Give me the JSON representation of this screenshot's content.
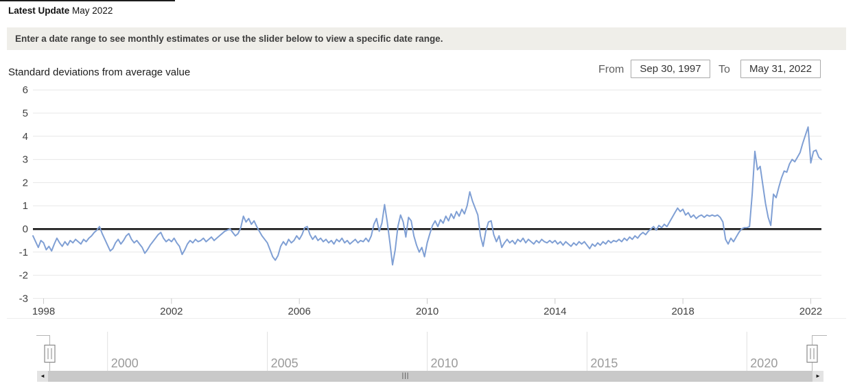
{
  "header": {
    "latest_update_label": "Latest Update",
    "latest_update_value": "May 2022"
  },
  "banner": {
    "text": "Enter a date range to see monthly estimates or use the slider below to view a specific date range."
  },
  "controls": {
    "from_label": "From",
    "from_value": "Sep 30, 1997",
    "to_label": "To",
    "to_value": "May 31, 2022"
  },
  "chart_data": {
    "type": "line",
    "title": "Standard deviations from average value",
    "x_start": "1997-09",
    "x_end": "2022-05",
    "frequency": "monthly",
    "x_tick_labels": [
      "1998",
      "2002",
      "2006",
      "2010",
      "2014",
      "2018",
      "2022"
    ],
    "y_ticks": [
      6,
      5,
      4,
      3,
      2,
      1,
      0,
      -1,
      -2,
      -3
    ],
    "ylim": [
      -3,
      6
    ],
    "grid": "horizontal",
    "zero_line": true,
    "line_color": "#7f9fd4",
    "values": [
      -0.3,
      -0.55,
      -0.8,
      -0.5,
      -0.6,
      -0.9,
      -0.75,
      -0.95,
      -0.65,
      -0.4,
      -0.6,
      -0.75,
      -0.55,
      -0.7,
      -0.5,
      -0.6,
      -0.45,
      -0.55,
      -0.65,
      -0.45,
      -0.55,
      -0.4,
      -0.3,
      -0.15,
      -0.05,
      0.1,
      -0.2,
      -0.45,
      -0.7,
      -0.95,
      -0.85,
      -0.6,
      -0.45,
      -0.65,
      -0.5,
      -0.3,
      -0.2,
      -0.45,
      -0.6,
      -0.5,
      -0.65,
      -0.8,
      -1.05,
      -0.9,
      -0.7,
      -0.55,
      -0.4,
      -0.25,
      -0.15,
      -0.4,
      -0.55,
      -0.45,
      -0.55,
      -0.4,
      -0.6,
      -0.75,
      -1.1,
      -0.9,
      -0.65,
      -0.5,
      -0.6,
      -0.45,
      -0.55,
      -0.5,
      -0.4,
      -0.55,
      -0.45,
      -0.35,
      -0.5,
      -0.4,
      -0.3,
      -0.2,
      -0.1,
      -0.05,
      0.0,
      -0.15,
      -0.3,
      -0.2,
      0.05,
      0.55,
      0.3,
      0.45,
      0.2,
      0.35,
      0.1,
      -0.1,
      -0.3,
      -0.45,
      -0.6,
      -0.9,
      -1.2,
      -1.35,
      -1.15,
      -0.75,
      -0.55,
      -0.7,
      -0.45,
      -0.6,
      -0.5,
      -0.3,
      -0.45,
      -0.25,
      0.05,
      0.1,
      -0.25,
      -0.45,
      -0.3,
      -0.5,
      -0.4,
      -0.55,
      -0.45,
      -0.6,
      -0.5,
      -0.65,
      -0.45,
      -0.55,
      -0.4,
      -0.6,
      -0.5,
      -0.65,
      -0.55,
      -0.45,
      -0.6,
      -0.5,
      -0.55,
      -0.4,
      -0.55,
      -0.3,
      0.2,
      0.45,
      -0.1,
      0.25,
      1.05,
      0.3,
      -0.6,
      -1.55,
      -0.9,
      0.1,
      0.6,
      0.3,
      -0.35,
      0.5,
      0.35,
      -0.3,
      -0.7,
      -1.0,
      -0.8,
      -1.2,
      -0.6,
      -0.2,
      0.15,
      0.35,
      0.1,
      0.4,
      0.25,
      0.55,
      0.35,
      0.65,
      0.45,
      0.75,
      0.55,
      0.85,
      0.65,
      1.0,
      1.6,
      1.2,
      0.9,
      0.6,
      -0.3,
      -0.75,
      -0.1,
      0.3,
      0.35,
      -0.25,
      -0.55,
      -0.3,
      -0.8,
      -0.6,
      -0.45,
      -0.6,
      -0.5,
      -0.65,
      -0.45,
      -0.55,
      -0.4,
      -0.6,
      -0.45,
      -0.55,
      -0.65,
      -0.5,
      -0.6,
      -0.45,
      -0.55,
      -0.6,
      -0.5,
      -0.6,
      -0.5,
      -0.65,
      -0.55,
      -0.7,
      -0.55,
      -0.65,
      -0.75,
      -0.6,
      -0.7,
      -0.55,
      -0.65,
      -0.55,
      -0.7,
      -0.85,
      -0.65,
      -0.75,
      -0.6,
      -0.7,
      -0.55,
      -0.65,
      -0.5,
      -0.6,
      -0.5,
      -0.55,
      -0.45,
      -0.55,
      -0.4,
      -0.5,
      -0.35,
      -0.45,
      -0.3,
      -0.4,
      -0.25,
      -0.15,
      -0.25,
      -0.1,
      0.0,
      0.1,
      -0.05,
      0.15,
      0.05,
      0.2,
      0.1,
      0.3,
      0.5,
      0.7,
      0.9,
      0.75,
      0.85,
      0.6,
      0.7,
      0.5,
      0.6,
      0.45,
      0.55,
      0.6,
      0.5,
      0.6,
      0.55,
      0.6,
      0.55,
      0.6,
      0.5,
      0.3,
      -0.45,
      -0.65,
      -0.4,
      -0.55,
      -0.35,
      -0.15,
      0.0,
      0.05,
      0.05,
      0.1,
      1.5,
      3.35,
      2.55,
      2.7,
      1.9,
      1.1,
      0.5,
      0.15,
      1.5,
      1.35,
      1.8,
      2.2,
      2.5,
      2.45,
      2.8,
      3.0,
      2.9,
      3.1,
      3.3,
      3.7,
      4.05,
      4.4,
      2.85,
      3.35,
      3.4,
      3.1,
      3.0
    ]
  },
  "slider": {
    "tick_labels": [
      "2000",
      "2005",
      "2010",
      "2015",
      "2020"
    ],
    "selected_start": "Sep 30, 1997",
    "selected_end": "May 31, 2022"
  },
  "scrollbar": {
    "left_arrow_icon": "◄",
    "right_arrow_icon": "►",
    "grip_icon": "|||"
  }
}
